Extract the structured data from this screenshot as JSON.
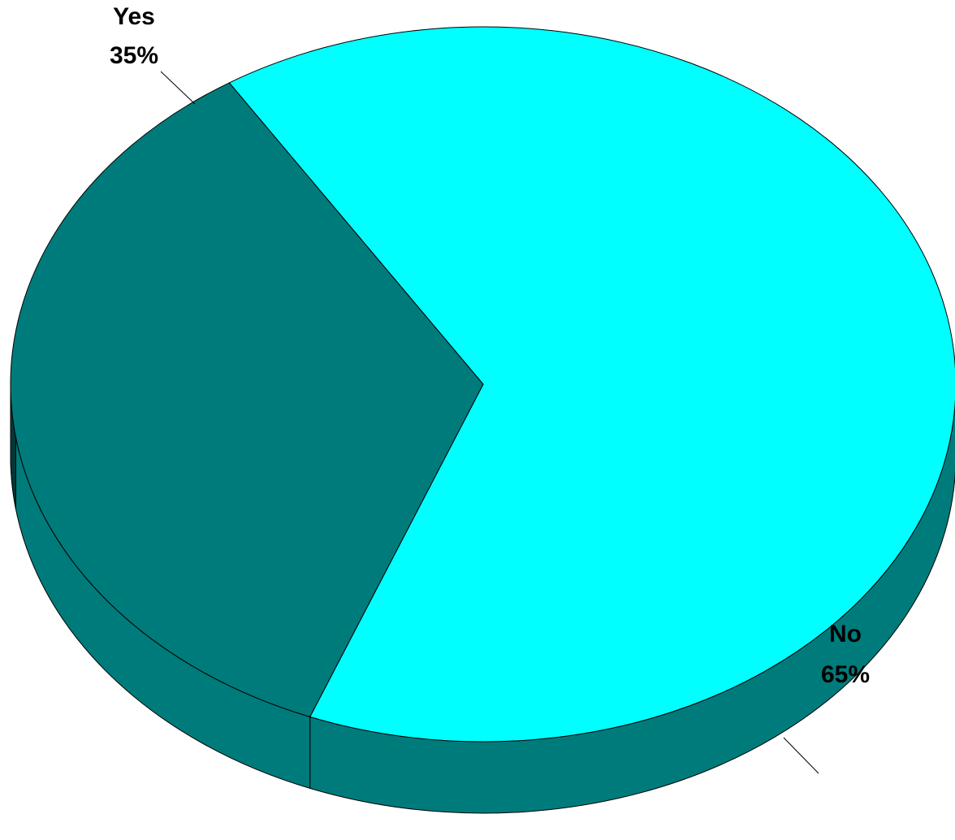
{
  "chart_data": {
    "type": "pie",
    "style": "3d",
    "categories": [
      "Yes",
      "No"
    ],
    "values": [
      35,
      65
    ],
    "value_labels": [
      "35%",
      "65%"
    ],
    "colors": {
      "Yes": "#007B7B",
      "No": "#00FFFF"
    },
    "side_color": "#007B7B",
    "legend": "none",
    "title": ""
  }
}
